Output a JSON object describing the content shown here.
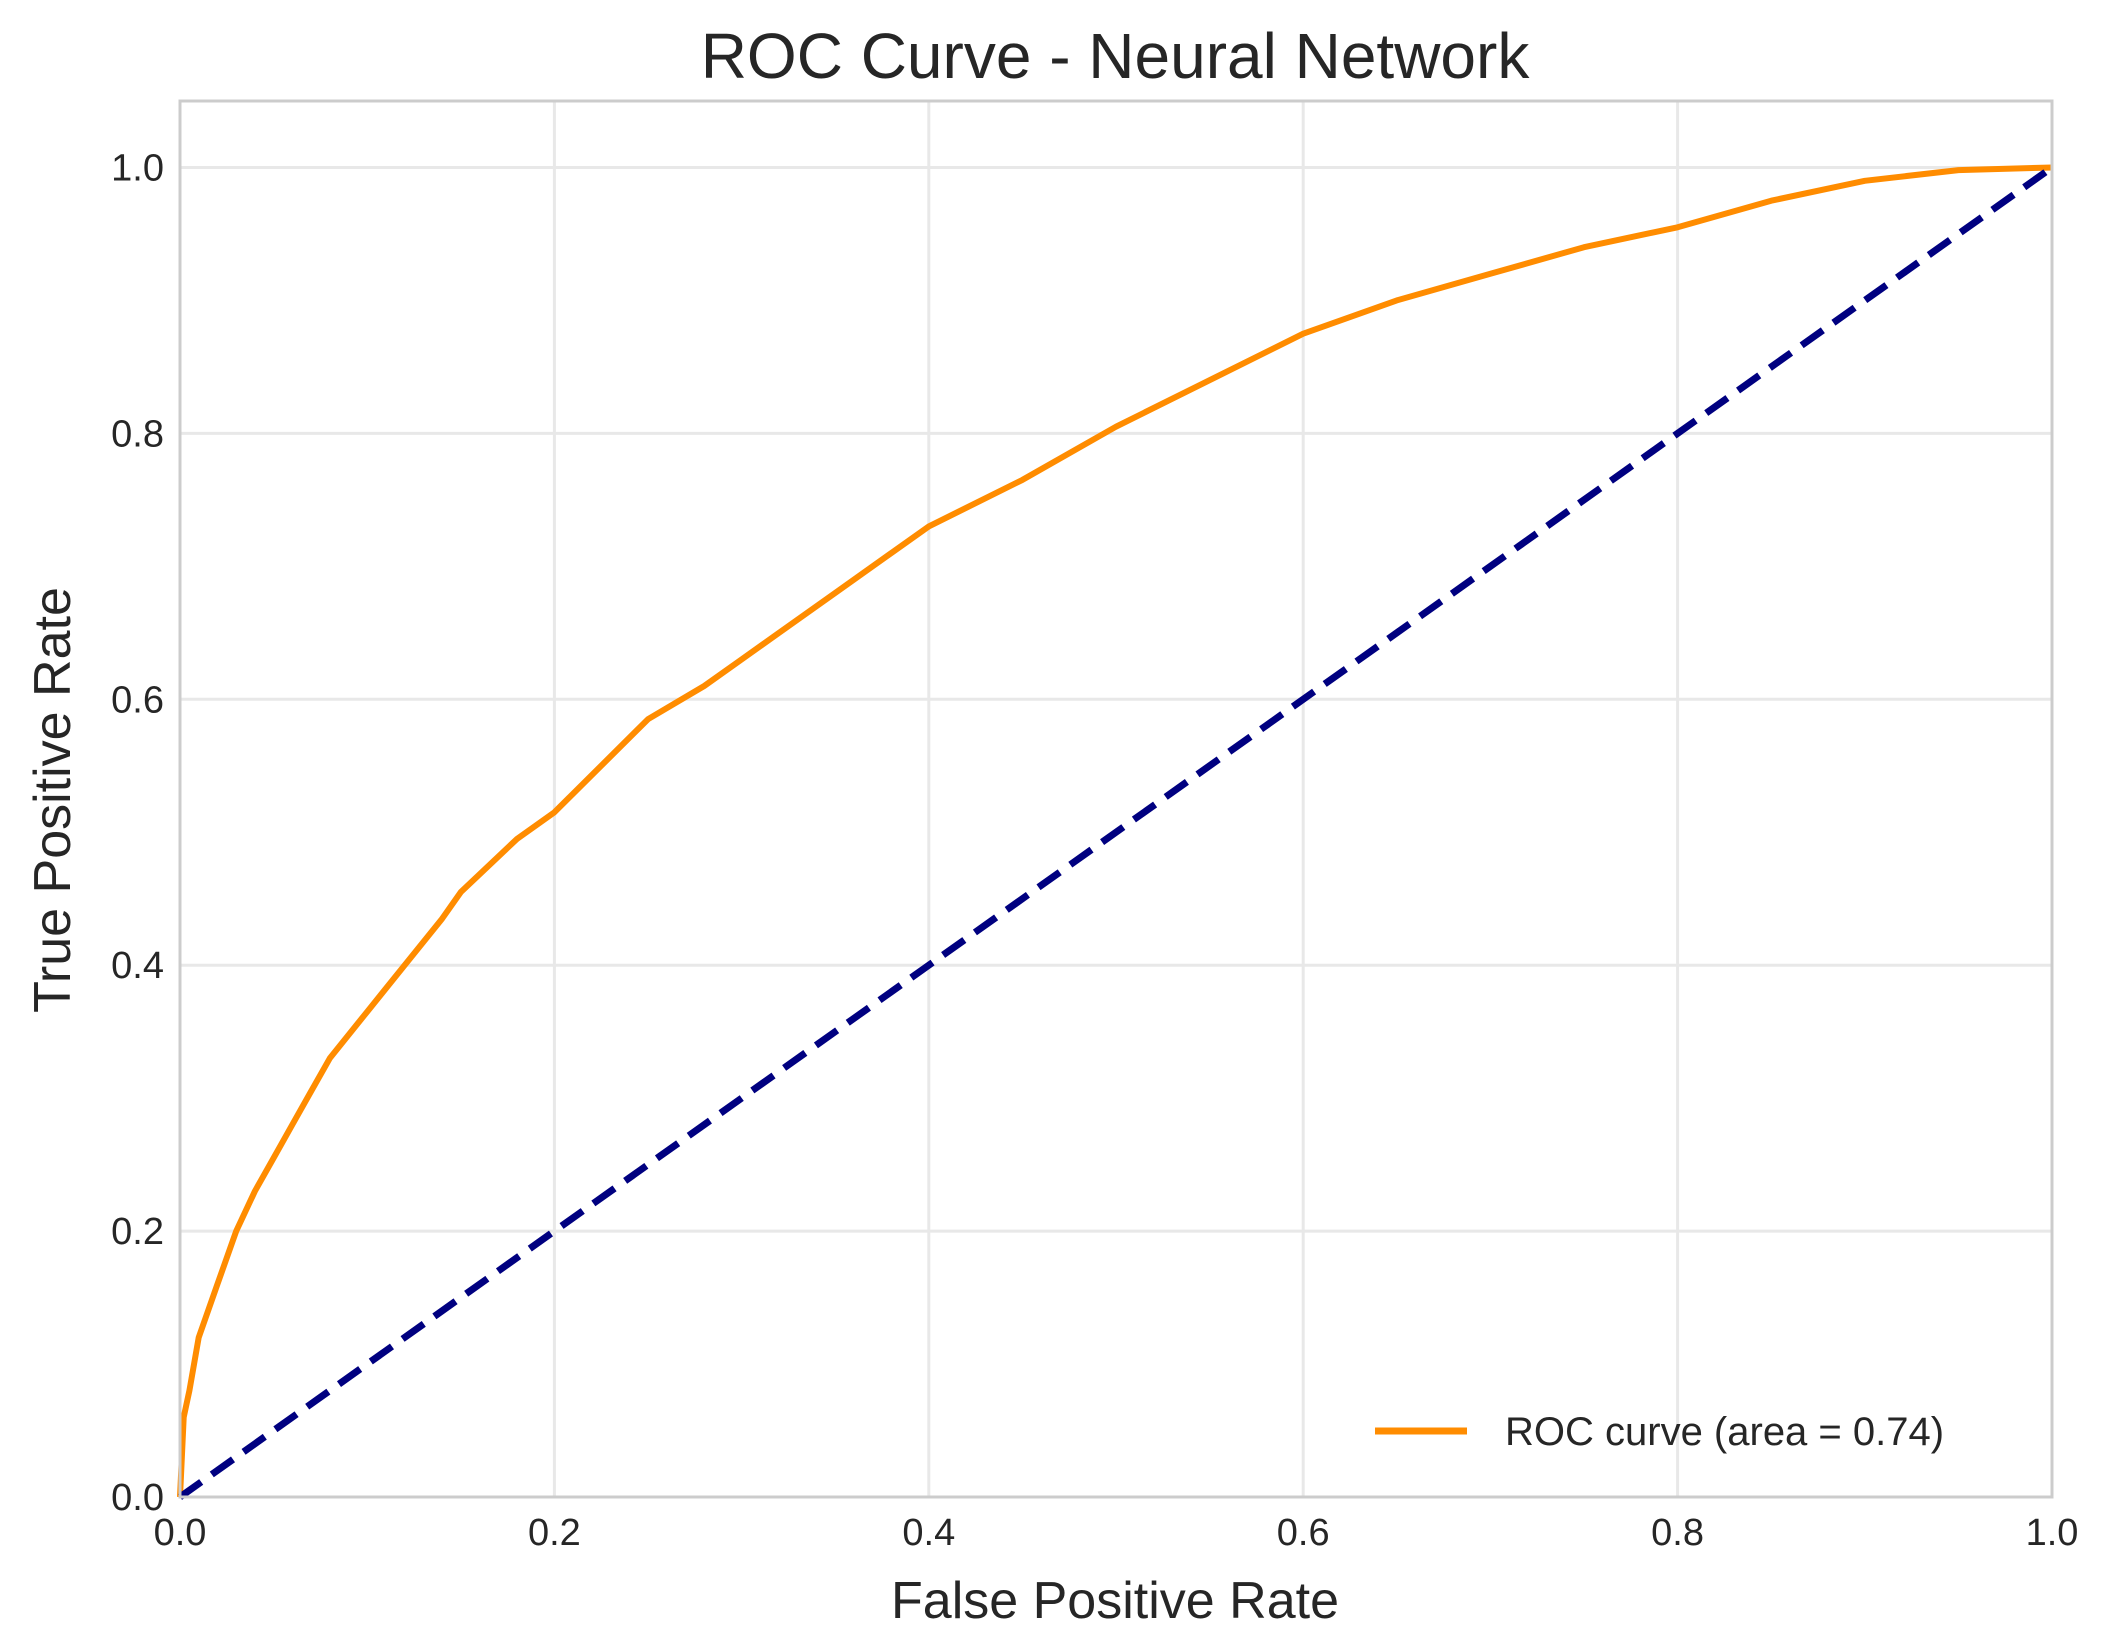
{
  "chart_data": {
    "type": "line",
    "title": "ROC Curve - Neural Network",
    "xlabel": "False Positive Rate",
    "ylabel": "True Positive Rate",
    "xlim": [
      0.0,
      1.0
    ],
    "ylim": [
      0.0,
      1.05
    ],
    "xticks": [
      "0.0",
      "0.2",
      "0.4",
      "0.6",
      "0.8",
      "1.0"
    ],
    "yticks": [
      "0.0",
      "0.2",
      "0.4",
      "0.6",
      "0.8",
      "1.0"
    ],
    "grid": true,
    "legend_position": "lower-right",
    "series": [
      {
        "name": "ROC curve (area = 0.74)",
        "color": "#ff8c00",
        "style": "solid",
        "x": [
          0.0,
          0.002,
          0.005,
          0.01,
          0.02,
          0.03,
          0.04,
          0.05,
          0.06,
          0.07,
          0.08,
          0.1,
          0.12,
          0.14,
          0.15,
          0.18,
          0.2,
          0.25,
          0.28,
          0.3,
          0.35,
          0.4,
          0.45,
          0.5,
          0.55,
          0.6,
          0.65,
          0.7,
          0.75,
          0.8,
          0.85,
          0.9,
          0.95,
          1.0
        ],
        "y": [
          0.0,
          0.06,
          0.08,
          0.12,
          0.16,
          0.2,
          0.23,
          0.255,
          0.28,
          0.305,
          0.33,
          0.365,
          0.4,
          0.435,
          0.455,
          0.495,
          0.515,
          0.585,
          0.61,
          0.63,
          0.68,
          0.73,
          0.765,
          0.805,
          0.84,
          0.875,
          0.9,
          0.92,
          0.94,
          0.955,
          0.975,
          0.99,
          0.998,
          1.0
        ]
      },
      {
        "name": "",
        "color": "#000080",
        "style": "dashed",
        "x": [
          0.0,
          1.0
        ],
        "y": [
          0.0,
          1.0
        ]
      }
    ],
    "legend": [
      "ROC curve (area = 0.74)"
    ]
  }
}
